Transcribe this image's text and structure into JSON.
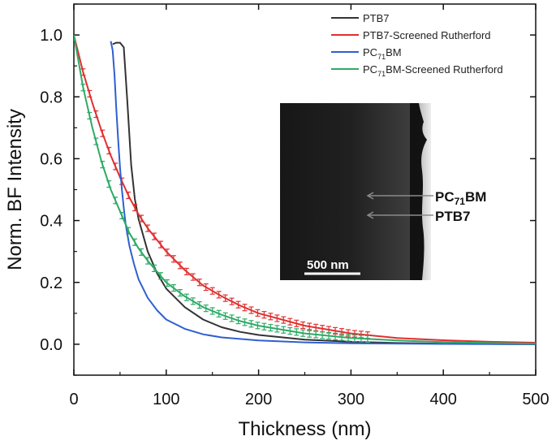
{
  "chart_data": {
    "type": "line",
    "title": "",
    "xlabel": "Thickness (nm)",
    "ylabel": "Norm. BF Intensity",
    "xlim": [
      0,
      500
    ],
    "ylim": [
      -0.1,
      1.1
    ],
    "xticks": [
      0,
      100,
      200,
      300,
      400,
      500
    ],
    "xtick_labels": [
      "0",
      "100",
      "200",
      "300",
      "400",
      "500"
    ],
    "yticks": [
      0.0,
      0.2,
      0.4,
      0.6,
      0.8,
      1.0
    ],
    "ytick_labels": [
      "0.0",
      "0.2",
      "0.4",
      "0.6",
      "0.8",
      "1.0"
    ],
    "legend_position": "top-right",
    "series": [
      {
        "name": "PTB7",
        "legend_label": {
          "main": "PTB7",
          "sub": "",
          "rest": ""
        },
        "color": "#333333",
        "error_bars": false,
        "x": [
          42,
          46,
          50,
          54,
          58,
          62,
          66,
          70,
          80,
          90,
          100,
          120,
          140,
          160,
          180,
          200,
          250,
          300,
          350,
          400,
          450,
          500
        ],
        "y": [
          0.97,
          0.975,
          0.975,
          0.96,
          0.78,
          0.58,
          0.47,
          0.405,
          0.3,
          0.23,
          0.18,
          0.12,
          0.08,
          0.055,
          0.04,
          0.03,
          0.015,
          0.008,
          0.004,
          0.002,
          0.001,
          0.0
        ]
      },
      {
        "name": "PTB7-Screened Rutherford",
        "legend_label": {
          "main": "PTB7-Screened Rutherford",
          "sub": "",
          "rest": ""
        },
        "color": "#e03030",
        "error_bars": true,
        "x": [
          0,
          10,
          20,
          30,
          40,
          50,
          60,
          70,
          80,
          100,
          120,
          140,
          160,
          180,
          200,
          250,
          300,
          350,
          400,
          450,
          500
        ],
        "y": [
          1.0,
          0.88,
          0.78,
          0.69,
          0.61,
          0.54,
          0.475,
          0.42,
          0.375,
          0.3,
          0.24,
          0.19,
          0.155,
          0.125,
          0.1,
          0.06,
          0.035,
          0.02,
          0.013,
          0.008,
          0.005
        ]
      },
      {
        "name": "PC71BM",
        "legend_label": {
          "main": "PC",
          "sub": "71",
          "rest": "BM"
        },
        "color": "#2f5fd0",
        "error_bars": false,
        "x": [
          40,
          42,
          44,
          46,
          48,
          50,
          52,
          54,
          56,
          60,
          65,
          70,
          80,
          90,
          100,
          120,
          140,
          160,
          200,
          250,
          300,
          400,
          500
        ],
        "y": [
          0.98,
          0.95,
          0.87,
          0.76,
          0.66,
          0.57,
          0.5,
          0.44,
          0.39,
          0.32,
          0.26,
          0.21,
          0.15,
          0.11,
          0.08,
          0.05,
          0.032,
          0.022,
          0.012,
          0.006,
          0.003,
          0.001,
          0.0
        ]
      },
      {
        "name": "PC71BM-Screened Rutherford",
        "legend_label": {
          "main": "PC",
          "sub": "71",
          "rest": "BM-Screened Rutherford"
        },
        "color": "#2eaa66",
        "error_bars": true,
        "x": [
          0,
          10,
          20,
          30,
          40,
          50,
          60,
          70,
          80,
          100,
          120,
          140,
          160,
          180,
          200,
          250,
          300,
          350,
          400,
          450,
          500
        ],
        "y": [
          1.0,
          0.83,
          0.7,
          0.59,
          0.5,
          0.43,
          0.36,
          0.31,
          0.27,
          0.2,
          0.155,
          0.12,
          0.095,
          0.075,
          0.06,
          0.035,
          0.02,
          0.012,
          0.007,
          0.004,
          0.002
        ]
      }
    ]
  },
  "inset": {
    "label_top": "PC71BM",
    "label_bottom": "PTB7",
    "scale_bar": "500 nm"
  }
}
